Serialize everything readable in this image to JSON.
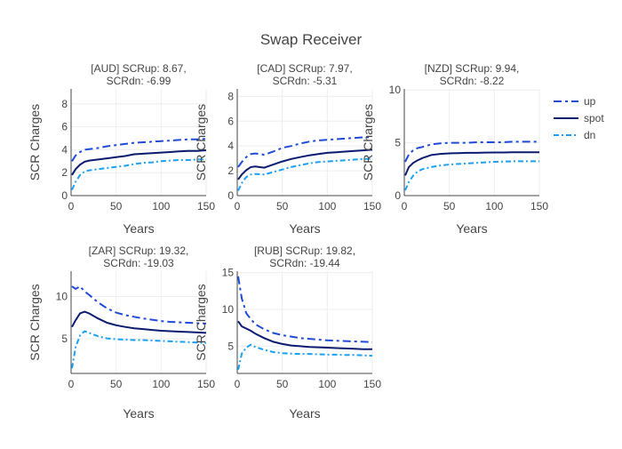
{
  "chart_data": {
    "type": "line",
    "title": "Swap Receiver",
    "legend": {
      "placement": "top-right",
      "entries": [
        "up",
        "spot",
        "dn"
      ]
    },
    "series_styles": {
      "up": {
        "color": "#1f4bd6",
        "dash": "long-dash-dot"
      },
      "spot": {
        "color": "#0b1b70",
        "dash": "solid"
      },
      "dn": {
        "color": "#1ca0f5",
        "dash": "dash-dot"
      }
    },
    "grid": true,
    "x": [
      1,
      5,
      10,
      15,
      20,
      30,
      40,
      50,
      60,
      70,
      80,
      90,
      100,
      110,
      120,
      130,
      140,
      150
    ],
    "subplots": [
      {
        "title": "[AUD] SCRup: 8.67, SCRdn: -6.99",
        "xlabel": "Years",
        "ylabel": "SCR Charges",
        "xlim": [
          0,
          150
        ],
        "ylim": [
          0,
          9.3
        ],
        "xticks": [
          0,
          50,
          100,
          150
        ],
        "yticks": [
          0,
          2,
          4,
          6,
          8
        ],
        "series": [
          {
            "name": "up",
            "values": [
              3.0,
              3.5,
              3.8,
              4.0,
              4.05,
              4.15,
              4.3,
              4.4,
              4.5,
              4.6,
              4.65,
              4.7,
              4.75,
              4.8,
              4.85,
              4.9,
              4.9,
              4.95
            ]
          },
          {
            "name": "spot",
            "values": [
              1.8,
              2.3,
              2.7,
              2.95,
              3.05,
              3.15,
              3.25,
              3.35,
              3.45,
              3.6,
              3.65,
              3.7,
              3.75,
              3.8,
              3.85,
              3.9,
              3.9,
              3.95
            ]
          },
          {
            "name": "dn",
            "values": [
              0.5,
              1.2,
              1.8,
              2.1,
              2.2,
              2.3,
              2.4,
              2.5,
              2.6,
              2.75,
              2.85,
              2.9,
              3.0,
              3.05,
              3.1,
              3.1,
              3.15,
              3.15
            ]
          }
        ]
      },
      {
        "title": "[CAD] SCRup: 7.97, SCRdn: -5.31",
        "xlabel": "Years",
        "ylabel": "SCR Charges",
        "xlim": [
          0,
          150
        ],
        "ylim": [
          0,
          8.6
        ],
        "xticks": [
          0,
          50,
          100,
          150
        ],
        "yticks": [
          0,
          2,
          4,
          6,
          8
        ],
        "series": [
          {
            "name": "up",
            "values": [
              2.3,
              2.7,
              3.1,
              3.35,
              3.4,
              3.3,
              3.55,
              3.85,
              4.0,
              4.2,
              4.35,
              4.45,
              4.5,
              4.55,
              4.6,
              4.65,
              4.7,
              4.7
            ]
          },
          {
            "name": "spot",
            "values": [
              1.3,
              1.7,
              2.05,
              2.3,
              2.35,
              2.25,
              2.5,
              2.75,
              2.95,
              3.1,
              3.25,
              3.35,
              3.45,
              3.5,
              3.55,
              3.6,
              3.65,
              3.7
            ]
          },
          {
            "name": "dn",
            "values": [
              0.4,
              1.0,
              1.5,
              1.7,
              1.75,
              1.7,
              1.9,
              2.1,
              2.3,
              2.45,
              2.6,
              2.7,
              2.75,
              2.8,
              2.85,
              2.9,
              2.95,
              2.95
            ]
          }
        ]
      },
      {
        "title": "[NZD] SCRup: 9.94, SCRdn: -8.22",
        "xlabel": "Years",
        "ylabel": "SCR Charges",
        "xlim": [
          0,
          150
        ],
        "ylim": [
          0,
          10.1
        ],
        "xticks": [
          0,
          50,
          100,
          150
        ],
        "yticks": [
          0,
          5,
          10
        ],
        "series": [
          {
            "name": "up",
            "values": [
              3.2,
              3.9,
              4.3,
              4.5,
              4.6,
              4.85,
              4.95,
              5.0,
              5.0,
              5.0,
              5.05,
              5.05,
              5.05,
              5.05,
              5.1,
              5.1,
              5.1,
              5.1
            ]
          },
          {
            "name": "spot",
            "values": [
              1.9,
              2.7,
              3.1,
              3.35,
              3.55,
              3.85,
              3.95,
              4.0,
              4.02,
              4.05,
              4.05,
              4.07,
              4.08,
              4.08,
              4.1,
              4.1,
              4.1,
              4.1
            ]
          },
          {
            "name": "dn",
            "values": [
              0.5,
              1.3,
              1.9,
              2.3,
              2.5,
              2.7,
              2.85,
              2.95,
              3.0,
              3.05,
              3.1,
              3.15,
              3.2,
              3.22,
              3.25,
              3.25,
              3.25,
              3.25
            ]
          }
        ]
      },
      {
        "title": "[ZAR] SCRup: 19.32, SCRdn: -19.03",
        "xlabel": "Years",
        "ylabel": "SCR Charges",
        "xlim": [
          0,
          150
        ],
        "ylim": [
          0.9,
          13
        ],
        "xticks": [
          0,
          50,
          100,
          150
        ],
        "yticks": [
          5,
          10
        ],
        "series": [
          {
            "name": "up",
            "values": [
              11.2,
              10.9,
              11.2,
              10.6,
              10.2,
              9.3,
              8.6,
              8.1,
              7.8,
              7.6,
              7.4,
              7.25,
              7.1,
              7.0,
              6.95,
              6.9,
              6.85,
              6.8
            ]
          },
          {
            "name": "spot",
            "values": [
              6.4,
              7.2,
              8.0,
              8.2,
              8.0,
              7.4,
              6.9,
              6.6,
              6.4,
              6.25,
              6.15,
              6.05,
              5.95,
              5.9,
              5.85,
              5.8,
              5.75,
              5.7
            ]
          },
          {
            "name": "dn",
            "values": [
              1.5,
              4.0,
              5.4,
              5.9,
              5.7,
              5.3,
              5.05,
              4.95,
              4.9,
              4.85,
              4.85,
              4.8,
              4.75,
              4.7,
              4.65,
              4.6,
              4.55,
              4.5
            ]
          }
        ]
      },
      {
        "title": "[RUB] SCRup: 19.82, SCRdn: -19.44",
        "xlabel": "Years",
        "ylabel": "SCR Charges",
        "xlim": [
          0,
          150
        ],
        "ylim": [
          1.3,
          15.2
        ],
        "xticks": [
          0,
          50,
          100,
          150
        ],
        "yticks": [
          5,
          10,
          15
        ],
        "series": [
          {
            "name": "up",
            "values": [
              14.5,
              11.5,
              9.5,
              8.7,
              8.0,
              7.3,
              6.8,
              6.5,
              6.3,
              6.1,
              6.0,
              5.9,
              5.8,
              5.75,
              5.7,
              5.65,
              5.6,
              5.55
            ]
          },
          {
            "name": "spot",
            "values": [
              8.4,
              7.7,
              7.4,
              7.1,
              6.7,
              6.1,
              5.6,
              5.3,
              5.1,
              5.0,
              4.9,
              4.85,
              4.8,
              4.75,
              4.7,
              4.65,
              4.6,
              4.6
            ]
          },
          {
            "name": "dn",
            "values": [
              1.8,
              4.0,
              4.8,
              5.2,
              4.9,
              4.5,
              4.2,
              4.05,
              4.0,
              3.95,
              3.95,
              3.9,
              3.85,
              3.85,
              3.8,
              3.8,
              3.75,
              3.7
            ]
          }
        ]
      }
    ]
  }
}
